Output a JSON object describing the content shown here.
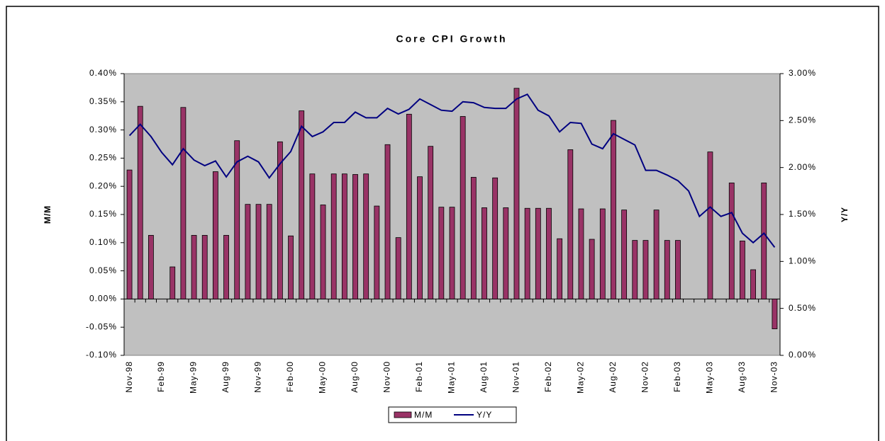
{
  "chart_data": {
    "type": "bar_line",
    "title": "Core CPI Growth",
    "y_label": "M/M",
    "y2_label": "Y/Y",
    "categories": [
      "Nov-98",
      null,
      null,
      "Feb-99",
      null,
      null,
      "May-99",
      null,
      null,
      "Aug-99",
      null,
      null,
      "Nov-99",
      null,
      null,
      "Feb-00",
      null,
      null,
      "May-00",
      null,
      null,
      "Aug-00",
      null,
      null,
      "Nov-00",
      null,
      null,
      "Feb-01",
      null,
      null,
      "May-01",
      null,
      null,
      "Aug-01",
      null,
      null,
      "Nov-01",
      null,
      null,
      "Feb-02",
      null,
      null,
      "May-02",
      null,
      null,
      "Aug-02",
      null,
      null,
      "Nov-02",
      null,
      null,
      "Feb-03",
      null,
      null,
      "May-03",
      null,
      null,
      "Aug-03",
      null,
      null,
      "Nov-03"
    ],
    "series": [
      {
        "name": "M/M",
        "type": "bar",
        "color": "#993366",
        "values": [
          0.229,
          0.342,
          0.113,
          0,
          0.057,
          0.34,
          0.113,
          0.113,
          0.226,
          0.113,
          0.281,
          0.168,
          0.168,
          0.168,
          0.279,
          0.112,
          0.334,
          0.222,
          0.167,
          0.222,
          0.222,
          0.221,
          0.222,
          0.165,
          0.274,
          0.109,
          0.328,
          0.217,
          0.271,
          0.163,
          0.163,
          0.324,
          0.216,
          0.162,
          0.215,
          0.162,
          0.374,
          0.161,
          0.161,
          0.161,
          0.107,
          0.265,
          0.16,
          0.106,
          0.16,
          0.317,
          0.158,
          0.104,
          0.104,
          0.158,
          0.104,
          0.104,
          0,
          0,
          0.261,
          0,
          0.206,
          0.103,
          0.052,
          0.206,
          -0.053
        ]
      },
      {
        "name": "Y/Y",
        "type": "line",
        "axis": "y2",
        "color": "#000080",
        "values": [
          2.34,
          2.46,
          2.33,
          2.16,
          2.03,
          2.2,
          2.08,
          2.02,
          2.07,
          1.9,
          2.06,
          2.12,
          2.06,
          1.89,
          2.04,
          2.17,
          2.44,
          2.33,
          2.38,
          2.48,
          2.48,
          2.59,
          2.53,
          2.53,
          2.63,
          2.57,
          2.62,
          2.73,
          2.67,
          2.61,
          2.6,
          2.7,
          2.69,
          2.64,
          2.63,
          2.63,
          2.73,
          2.78,
          2.61,
          2.55,
          2.38,
          2.48,
          2.47,
          2.25,
          2.2,
          2.36,
          2.3,
          2.24,
          1.97,
          1.97,
          1.92,
          1.86,
          1.75,
          1.48,
          1.58,
          1.48,
          1.52,
          1.3,
          1.2,
          1.3,
          1.15
        ]
      }
    ],
    "ylim": [
      -0.1,
      0.4
    ],
    "yticks": [
      {
        "value": -0.1,
        "label": "-0.10%"
      },
      {
        "value": -0.05,
        "label": "-0.05%"
      },
      {
        "value": 0,
        "label": "0.00%"
      },
      {
        "value": 0.05,
        "label": "0.05%"
      },
      {
        "value": 0.1,
        "label": "0.10%"
      },
      {
        "value": 0.15,
        "label": "0.15%"
      },
      {
        "value": 0.2,
        "label": "0.20%"
      },
      {
        "value": 0.25,
        "label": "0.25%"
      },
      {
        "value": 0.3,
        "label": "0.30%"
      },
      {
        "value": 0.35,
        "label": "0.35%"
      },
      {
        "value": 0.4,
        "label": "0.40%"
      }
    ],
    "y2lim": [
      0,
      3
    ],
    "y2ticks": [
      {
        "value": 0,
        "label": "0.00%"
      },
      {
        "value": 0.5,
        "label": "0.50%"
      },
      {
        "value": 1,
        "label": "1.00%"
      },
      {
        "value": 1.5,
        "label": "1.50%"
      },
      {
        "value": 2,
        "label": "2.00%"
      },
      {
        "value": 2.5,
        "label": "2.50%"
      },
      {
        "value": 3,
        "label": "3.00%"
      }
    ],
    "plot_background": "#c0c0c0",
    "legend": "bottom"
  }
}
